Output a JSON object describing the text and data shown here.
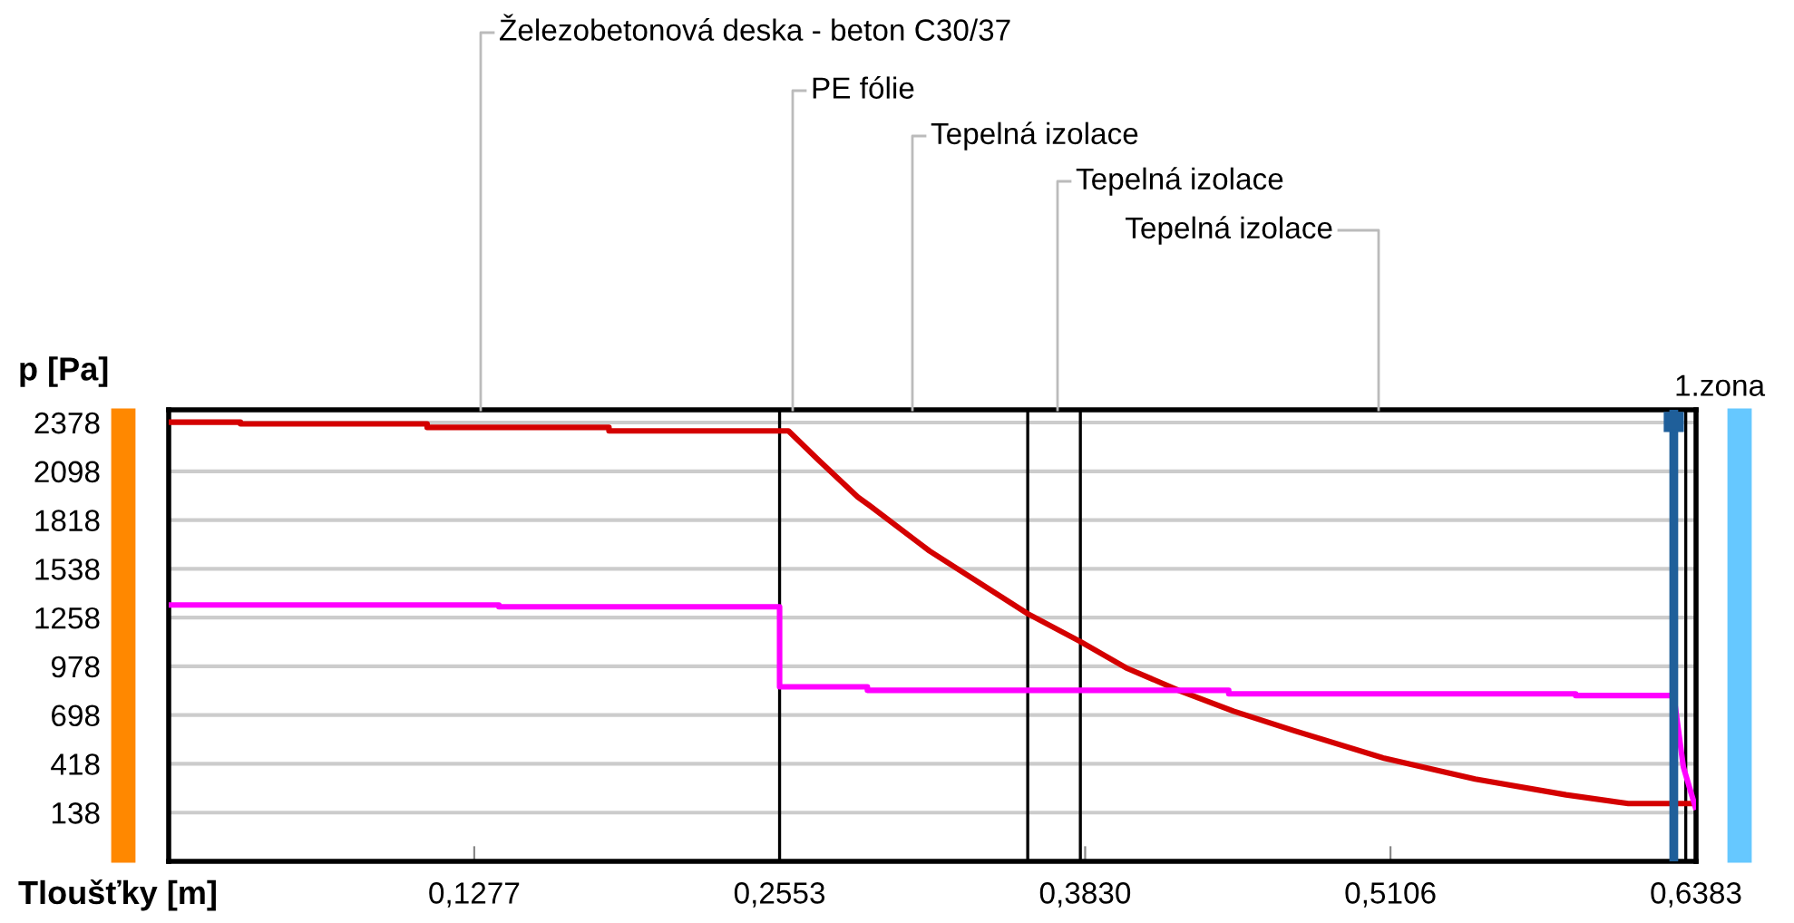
{
  "chart_data": {
    "type": "line",
    "xlabel": "Tloušťky [m]",
    "ylabel": "p [Pa]",
    "xlim": [
      0,
      0.6383
    ],
    "xticks": [
      {
        "value": 0.1277,
        "label": "0,1277"
      },
      {
        "value": 0.2553,
        "label": "0,2553"
      },
      {
        "value": 0.383,
        "label": "0,3830"
      },
      {
        "value": 0.5106,
        "label": "0,5106"
      },
      {
        "value": 0.6383,
        "label": "0,6383"
      }
    ],
    "ylim": [
      -142,
      2451
    ],
    "yticks": [
      138,
      418,
      698,
      978,
      1258,
      1538,
      1818,
      2098,
      2378
    ],
    "grid": "y",
    "line_style": "solid",
    "marker": "none",
    "series": [
      {
        "color": "#d40000",
        "x": [
          0,
          0.03,
          0.03,
          0.108,
          0.108,
          0.184,
          0.184,
          0.259,
          0.271,
          0.288,
          0.293,
          0.318,
          0.359,
          0.381,
          0.4,
          0.422,
          0.445,
          0.47,
          0.508,
          0.546,
          0.584,
          0.61,
          0.629,
          0.638
        ],
        "values": [
          2380,
          2380,
          2370,
          2370,
          2350,
          2350,
          2330,
          2330,
          2170,
          1950,
          1900,
          1640,
          1280,
          1120,
          970,
          840,
          720,
          610,
          450,
          330,
          240,
          190,
          190,
          190
        ]
      },
      {
        "type": "step",
        "color": "#ff00ff",
        "x": [
          0,
          0.138,
          0.138,
          0.2553,
          0.2553,
          0.292,
          0.292,
          0.443,
          0.443,
          0.588,
          0.588,
          0.629,
          0.633,
          0.638
        ],
        "values": [
          1330,
          1330,
          1320,
          1320,
          860,
          860,
          840,
          840,
          820,
          820,
          810,
          810,
          400,
          170
        ]
      }
    ],
    "ref_lines": [
      {
        "axis": "x",
        "value": 0.2553,
        "color": "#000000"
      },
      {
        "axis": "x",
        "value": 0.359,
        "color": "#000000"
      },
      {
        "axis": "x",
        "value": 0.381,
        "color": "#000000"
      },
      {
        "axis": "x",
        "value": 0.629,
        "color": "#1f5f9a"
      },
      {
        "axis": "x",
        "value": 0.634,
        "color": "#000000"
      }
    ],
    "annotations": [
      "Železobetonová deska - beton C30/37",
      "PE fólie",
      "Tepelná izolace",
      "Tepelná izolace",
      "Tepelná izolace",
      "1.zona"
    ]
  }
}
